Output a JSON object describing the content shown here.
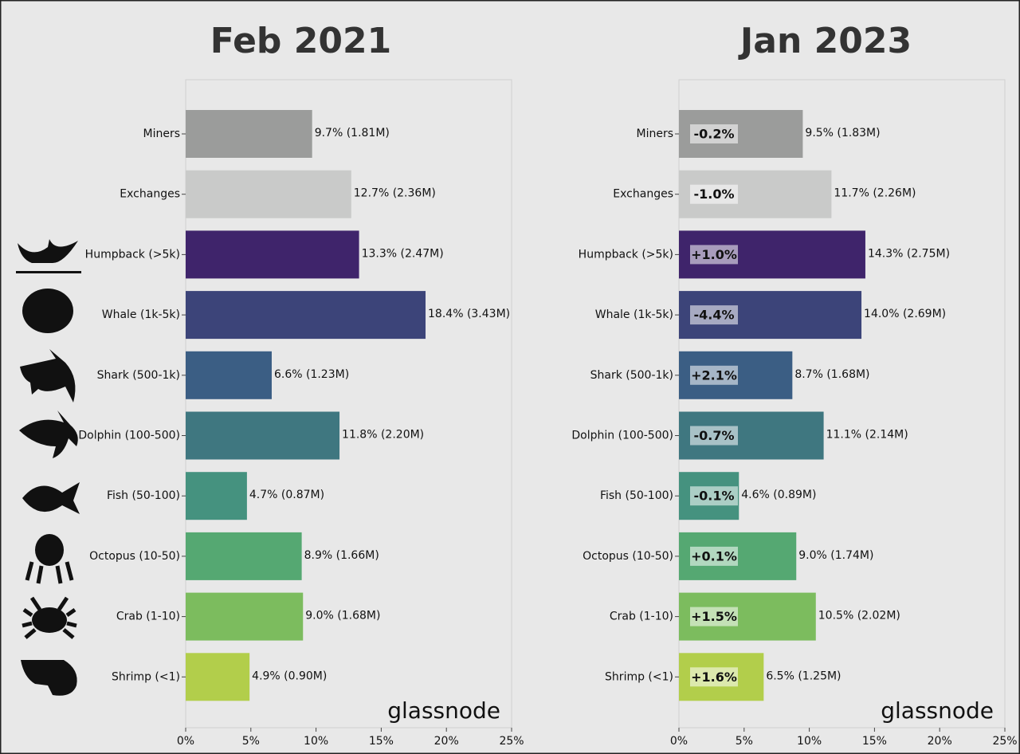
{
  "chart_data": [
    {
      "type": "barh",
      "title": "Feb 2021",
      "categories": [
        "Miners",
        "Exchanges",
        "Humpback (>5k)",
        "Whale (1k-5k)",
        "Shark (500-1k)",
        "Dolphin (100-500)",
        "Fish (50-100)",
        "Octopus (10-50)",
        "Crab (1-10)",
        "Shrimp (<1)"
      ],
      "values": [
        9.7,
        12.7,
        13.3,
        18.4,
        6.6,
        11.8,
        4.7,
        8.9,
        9.0,
        4.9
      ],
      "value_labels": [
        "9.7% (1.81M)",
        "12.7% (2.36M)",
        "13.3% (2.47M)",
        "18.4% (3.43M)",
        "6.6% (1.23M)",
        "11.8% (2.20M)",
        "4.7% (0.87M)",
        "8.9% (1.66M)",
        "9.0% (1.68M)",
        "4.9% (0.90M)"
      ],
      "colors": [
        "#9b9c9b",
        "#c9cac9",
        "#3f246b",
        "#3c4479",
        "#3b5e84",
        "#3f7780",
        "#45927f",
        "#55a872",
        "#7cbc5e",
        "#b2ce4b"
      ],
      "xlim": [
        0,
        25
      ],
      "xticks": [
        {
          "value": 0,
          "label": "0%"
        },
        {
          "value": 5,
          "label": "5%"
        },
        {
          "value": 10,
          "label": "10%"
        },
        {
          "value": 15,
          "label": "15%"
        },
        {
          "value": 20,
          "label": "20%"
        },
        {
          "value": 25,
          "label": "25%"
        }
      ],
      "watermark": "glassnode"
    },
    {
      "type": "barh",
      "title": "Jan 2023",
      "categories": [
        "Miners",
        "Exchanges",
        "Humpback (>5k)",
        "Whale (1k-5k)",
        "Shark (500-1k)",
        "Dolphin (100-500)",
        "Fish (50-100)",
        "Octopus (10-50)",
        "Crab (1-10)",
        "Shrimp (<1)"
      ],
      "values": [
        9.5,
        11.7,
        14.3,
        14.0,
        8.7,
        11.1,
        4.6,
        9.0,
        10.5,
        6.5
      ],
      "value_labels": [
        "9.5% (1.83M)",
        "11.7% (2.26M)",
        "14.3% (2.75M)",
        "14.0% (2.69M)",
        "8.7% (1.68M)",
        "11.1% (2.14M)",
        "4.6% (0.89M)",
        "9.0% (1.74M)",
        "10.5% (2.02M)",
        "6.5% (1.25M)"
      ],
      "changes": [
        "-0.2%",
        "-1.0%",
        "+1.0%",
        "-4.4%",
        "+2.1%",
        "-0.7%",
        "-0.1%",
        "+0.1%",
        "+1.5%",
        "+1.6%"
      ],
      "colors": [
        "#9b9c9b",
        "#c9cac9",
        "#3f246b",
        "#3c4479",
        "#3b5e84",
        "#3f7780",
        "#45927f",
        "#55a872",
        "#7cbc5e",
        "#b2ce4b"
      ],
      "xlim": [
        0,
        25
      ],
      "xticks": [
        {
          "value": 0,
          "label": "0%"
        },
        {
          "value": 5,
          "label": "5%"
        },
        {
          "value": 10,
          "label": "10%"
        },
        {
          "value": 15,
          "label": "15%"
        },
        {
          "value": 20,
          "label": "20%"
        },
        {
          "value": 25,
          "label": "25%"
        }
      ],
      "watermark": "glassnode"
    }
  ]
}
